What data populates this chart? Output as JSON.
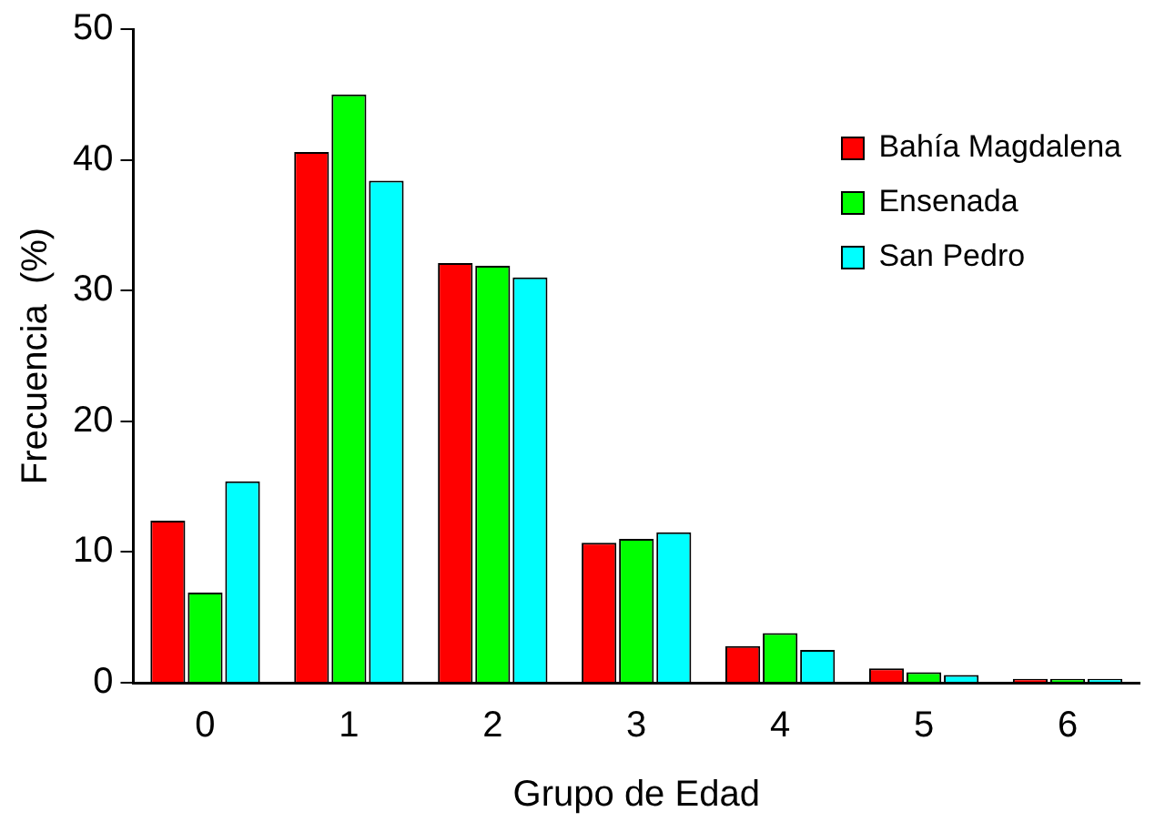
{
  "chart_data": {
    "type": "bar",
    "xlabel": "Grupo de Edad",
    "ylabel": "Frecuencia  (%)",
    "categories": [
      "0",
      "1",
      "2",
      "3",
      "4",
      "5",
      "6"
    ],
    "series": [
      {
        "name": "Bahía Magdalena",
        "color": "#ff0000",
        "values": [
          12.4,
          40.6,
          32.1,
          10.7,
          2.8,
          1.1,
          0.3
        ]
      },
      {
        "name": "Ensenada",
        "color": "#00ff00",
        "values": [
          6.9,
          45.0,
          31.9,
          11.0,
          3.8,
          0.8,
          0.3
        ]
      },
      {
        "name": "San Pedro",
        "color": "#00ffff",
        "values": [
          15.4,
          38.4,
          31.0,
          11.5,
          2.5,
          0.6,
          0.3
        ]
      }
    ],
    "ylim": [
      0,
      50
    ],
    "yticks": [
      0,
      10,
      20,
      30,
      40,
      50
    ],
    "grid": false,
    "legend": "top right"
  }
}
